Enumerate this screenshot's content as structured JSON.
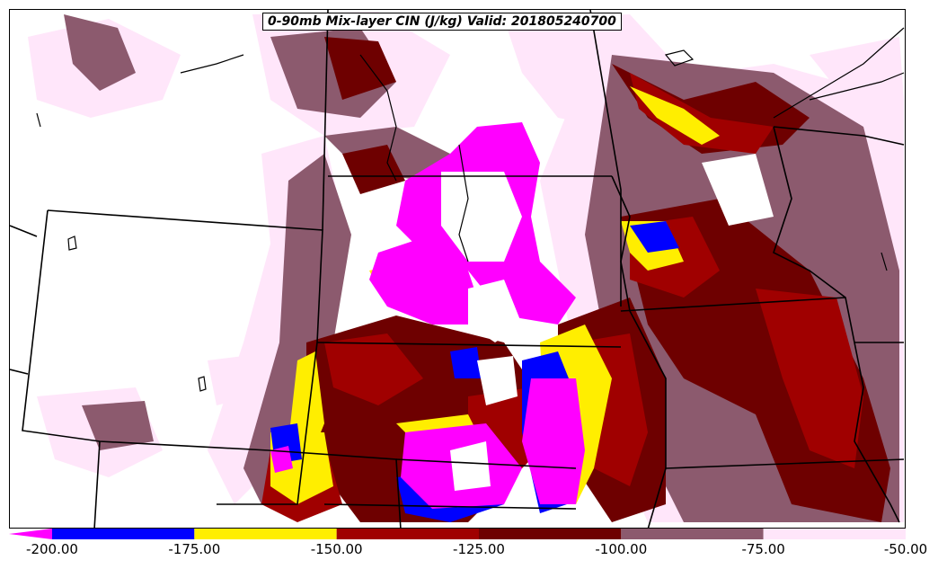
{
  "title": "0-90mb Mix-layer CIN (J/kg) Valid: 201805240700",
  "legend": {
    "bins": [
      {
        "min": -200,
        "max": -175,
        "color": "#0000ff"
      },
      {
        "min": -175,
        "max": -150,
        "color": "#ffee00"
      },
      {
        "min": -150,
        "max": -125,
        "color": "#a00000"
      },
      {
        "min": -125,
        "max": -100,
        "color": "#6e0000"
      },
      {
        "min": -100,
        "max": -75,
        "color": "#8c5a6e"
      },
      {
        "min": -75,
        "max": -50,
        "color": "#ffe6fa"
      }
    ],
    "below_min_color": "#ff00ff",
    "tick_labels": [
      "-200.00",
      "-175.00",
      "-150.00",
      "-125.00",
      "-100.00",
      "-75.00",
      "-50.00"
    ]
  },
  "colors": {
    "magenta": "#ff00ff",
    "blue": "#0000ff",
    "yellow": "#ffee00",
    "red": "#a00000",
    "darkred": "#6e0000",
    "mauve": "#8c5a6e",
    "pink": "#ffe6fa",
    "border": "#000000"
  }
}
